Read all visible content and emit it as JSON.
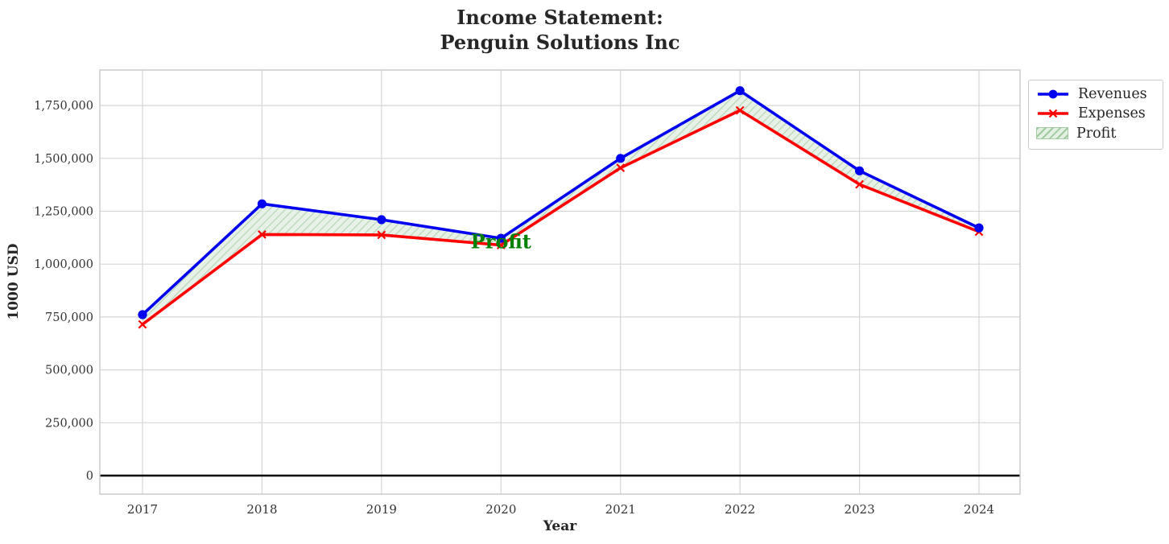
{
  "chart_data": {
    "type": "line",
    "title": "Income Statement:\nPenguin Solutions Inc",
    "title_line1": "Income Statement:",
    "title_line2": "Penguin Solutions Inc",
    "xlabel": "Year",
    "ylabel": "1000 USD",
    "x": [
      2017,
      2018,
      2019,
      2020,
      2021,
      2022,
      2023,
      2024
    ],
    "x_tick_labels": [
      "2017",
      "2018",
      "2019",
      "2020",
      "2021",
      "2022",
      "2023",
      "2024"
    ],
    "series": [
      {
        "name": "Revenues",
        "color": "#0000f0",
        "marker": "circle",
        "values": [
          761000,
          1285000,
          1210000,
          1122000,
          1500000,
          1820000,
          1441000,
          1171000
        ]
      },
      {
        "name": "Expenses",
        "color": "#ff0000",
        "marker": "x",
        "values": [
          715000,
          1140000,
          1138000,
          1090000,
          1455000,
          1727000,
          1377000,
          1153000
        ]
      }
    ],
    "fill_between": {
      "label": "Profit",
      "between": [
        "Revenues",
        "Expenses"
      ],
      "face_color": "#e7f1e7",
      "hatch_color": "#b7d6b7",
      "hatch": "/",
      "profit_values": [
        46000,
        145000,
        72000,
        32000,
        45000,
        93000,
        64000,
        18000
      ]
    },
    "annotation": {
      "text": "Profit",
      "x": 2020,
      "y": 1110000,
      "color": "#008000"
    },
    "y_ticks": [
      0,
      250000,
      500000,
      750000,
      1000000,
      1250000,
      1500000,
      1750000
    ],
    "y_tick_labels": [
      "0",
      "250,000",
      "500,000",
      "750,000",
      "1,000,000",
      "1,250,000",
      "1,500,000",
      "1,750,000"
    ],
    "ylim": [
      -90000,
      1920000
    ],
    "grid": true,
    "grid_color": "#d6d6d6",
    "spine_color": "#c8c8c8",
    "tick_label_color": "#333333",
    "zero_line": {
      "value": 0,
      "color": "#000000"
    },
    "legend_position": "outside-upper-right",
    "legend_entries": [
      "Revenues",
      "Expenses",
      "Profit"
    ]
  }
}
